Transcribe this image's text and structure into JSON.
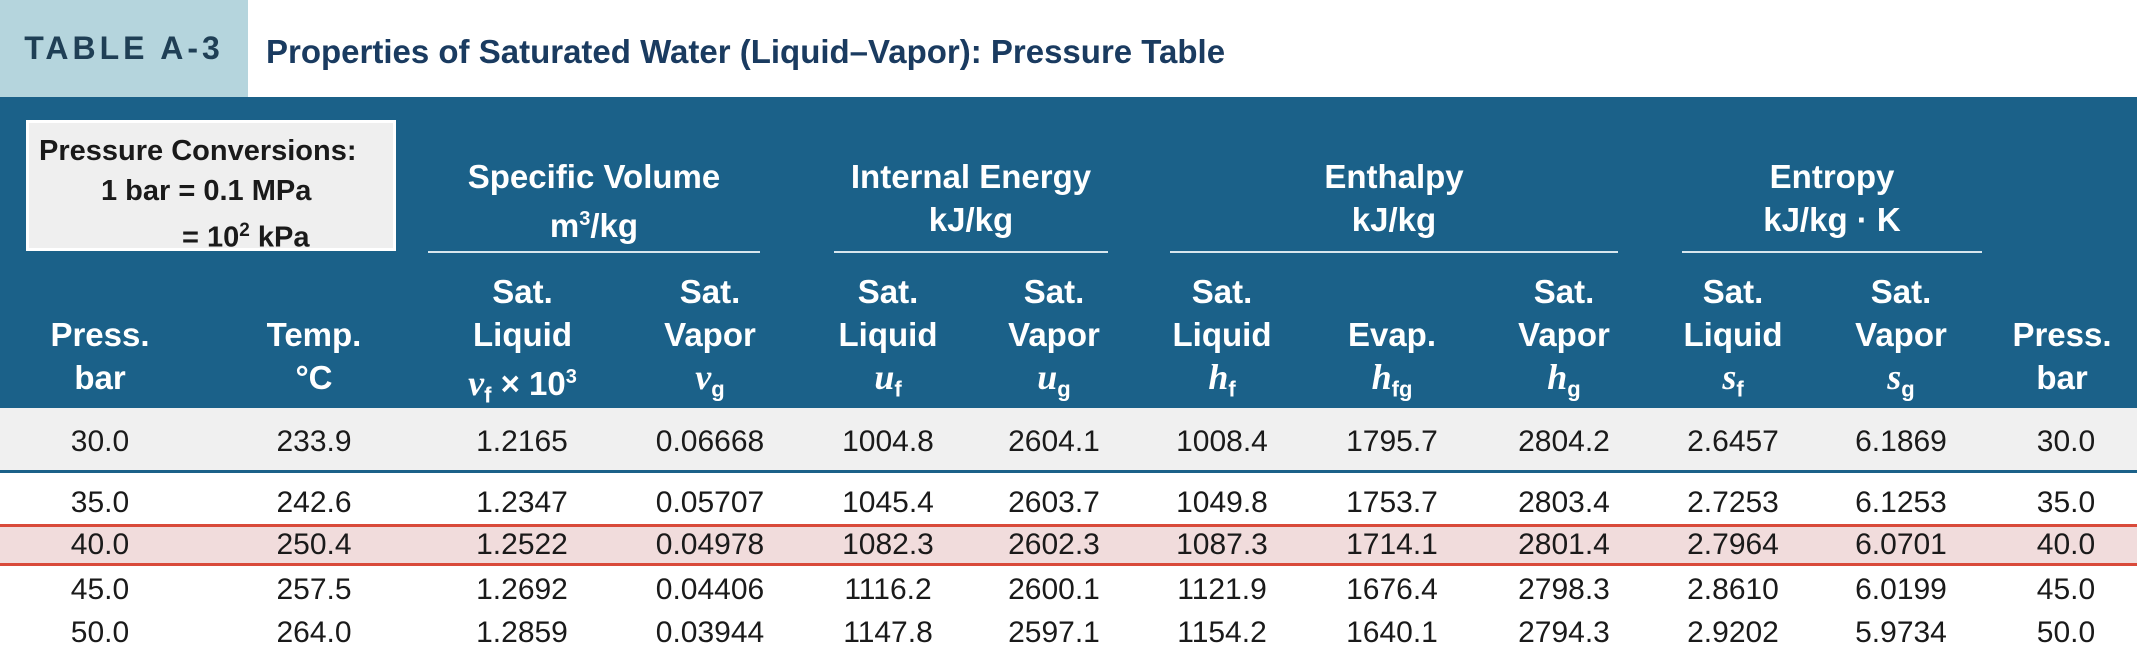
{
  "title": {
    "label": "TABLE A-3",
    "text": "Properties of Saturated Water (Liquid–Vapor): Pressure Table"
  },
  "conversions": {
    "line1": "Pressure Conversions:",
    "line2": "1 bar = 0.1 MPa",
    "line3_prefix": "= 10",
    "line3_exp": "2",
    "line3_suffix": " kPa"
  },
  "groups": {
    "specific_volume": {
      "name": "Specific Volume",
      "unit_prefix": "m",
      "unit_exp": "3",
      "unit_suffix": "/kg"
    },
    "internal_energy": {
      "name": "Internal Energy",
      "unit": "kJ/kg"
    },
    "enthalpy": {
      "name": "Enthalpy",
      "unit": "kJ/kg"
    },
    "entropy": {
      "name": "Entropy",
      "unit": "kJ/kg · K"
    }
  },
  "columns": {
    "press_left": {
      "l1": "Press.",
      "l2": "bar"
    },
    "temp": {
      "l1": "Temp.",
      "l2": "°C"
    },
    "vf": {
      "l1": "Sat.",
      "l2": "Liquid",
      "sym": "v",
      "sub": "f",
      "post": " × 10",
      "exp": "3"
    },
    "vg": {
      "l1": "Sat.",
      "l2": "Vapor",
      "sym": "v",
      "sub": "g"
    },
    "uf": {
      "l1": "Sat.",
      "l2": "Liquid",
      "sym": "u",
      "sub": "f"
    },
    "ug": {
      "l1": "Sat.",
      "l2": "Vapor",
      "sym": "u",
      "sub": "g"
    },
    "hf": {
      "l1": "Sat.",
      "l2": "Liquid",
      "sym": "h",
      "sub": "f"
    },
    "hfg": {
      "l1": "Evap.",
      "sym": "h",
      "sub": "fg"
    },
    "hg": {
      "l1": "Sat.",
      "l2": "Vapor",
      "sym": "h",
      "sub": "g"
    },
    "sf": {
      "l1": "Sat.",
      "l2": "Liquid",
      "sym": "s",
      "sub": "f"
    },
    "sg": {
      "l1": "Sat.",
      "l2": "Vapor",
      "sym": "s",
      "sub": "g"
    },
    "press_right": {
      "l1": "Press.",
      "l2": "bar"
    }
  },
  "rows": [
    [
      "30.0",
      "233.9",
      "1.2165",
      "0.06668",
      "1004.8",
      "2604.1",
      "1008.4",
      "1795.7",
      "2804.2",
      "2.6457",
      "6.1869",
      "30.0"
    ],
    [
      "35.0",
      "242.6",
      "1.2347",
      "0.05707",
      "1045.4",
      "2603.7",
      "1049.8",
      "1753.7",
      "2803.4",
      "2.7253",
      "6.1253",
      "35.0"
    ],
    [
      "40.0",
      "250.4",
      "1.2522",
      "0.04978",
      "1082.3",
      "2602.3",
      "1087.3",
      "1714.1",
      "2801.4",
      "2.7964",
      "6.0701",
      "40.0"
    ],
    [
      "45.0",
      "257.5",
      "1.2692",
      "0.04406",
      "1116.2",
      "2600.1",
      "1121.9",
      "1676.4",
      "2798.3",
      "2.8610",
      "6.0199",
      "45.0"
    ],
    [
      "50.0",
      "264.0",
      "1.2859",
      "0.03944",
      "1147.8",
      "2597.1",
      "1154.2",
      "1640.1",
      "2794.3",
      "2.9202",
      "5.9734",
      "50.0"
    ]
  ],
  "highlighted_row": 2,
  "colors": {
    "header_bg": "#1b6189",
    "label_bg": "#b5d5dd",
    "title_text": "#1a3b60",
    "highlight_bg": "#f1dcdc",
    "highlight_border": "#d94a3a",
    "first_row_bg": "#f0f0f0"
  }
}
